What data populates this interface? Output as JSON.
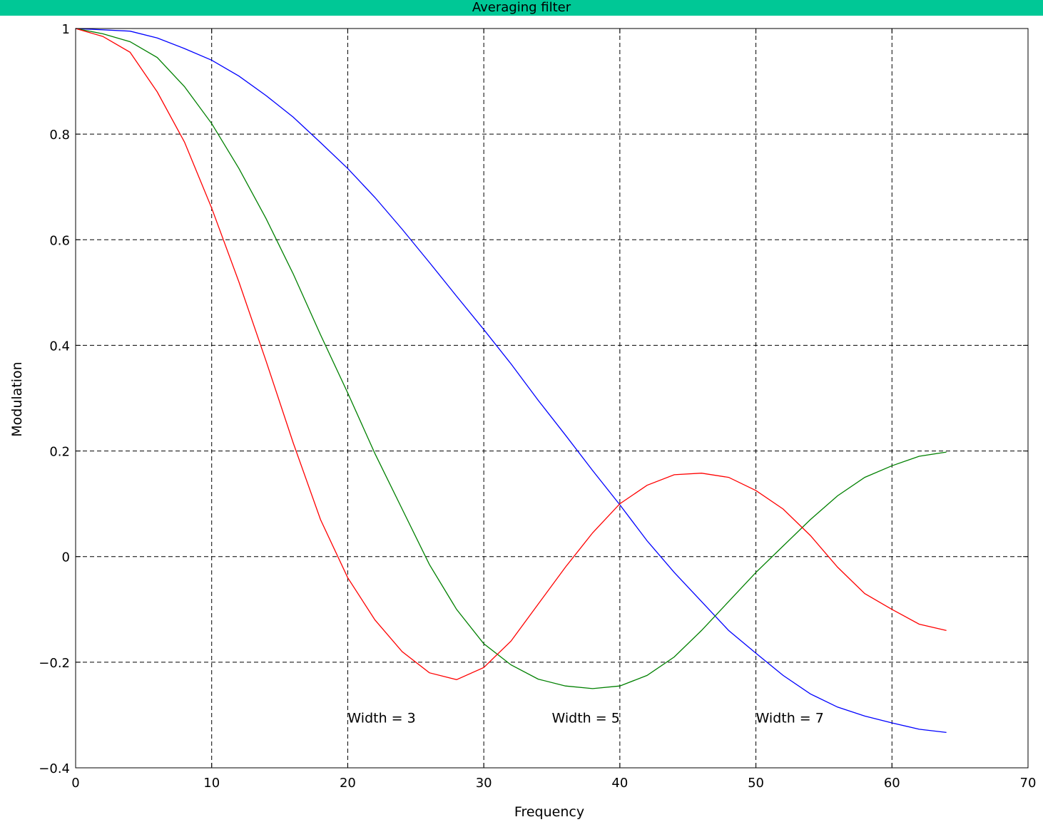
{
  "window": {
    "title": "Averaging filter"
  },
  "chart_data": {
    "type": "line",
    "title": "Averaging filter",
    "xlabel": "Frequency",
    "ylabel": "Modulation",
    "xlim": [
      0,
      70
    ],
    "ylim": [
      -0.4,
      1
    ],
    "x_ticks": [
      0,
      10,
      20,
      30,
      40,
      50,
      60,
      70
    ],
    "y_ticks": [
      -0.4,
      -0.2,
      0,
      0.2,
      0.4,
      0.6,
      0.8,
      1
    ],
    "y_tick_labels": [
      "−0.4",
      "−0.2",
      "0",
      "0.2",
      "0.4",
      "0.6",
      "0.8",
      "1"
    ],
    "grid": true,
    "series": [
      {
        "color": "#0000ff",
        "points": [
          [
            0,
            1
          ],
          [
            4,
            0.995
          ],
          [
            6,
            0.982
          ],
          [
            8,
            0.962
          ],
          [
            10,
            0.94
          ],
          [
            12,
            0.91
          ],
          [
            14,
            0.873
          ],
          [
            16,
            0.832
          ],
          [
            18,
            0.784
          ],
          [
            20,
            0.735
          ],
          [
            22,
            0.68
          ],
          [
            24,
            0.62
          ],
          [
            26,
            0.557
          ],
          [
            28,
            0.493
          ],
          [
            30,
            0.43
          ],
          [
            32,
            0.365
          ],
          [
            34,
            0.296
          ],
          [
            36,
            0.23
          ],
          [
            38,
            0.163
          ],
          [
            40,
            0.098
          ],
          [
            42,
            0.03
          ],
          [
            44,
            -0.03
          ],
          [
            46,
            -0.085
          ],
          [
            48,
            -0.14
          ],
          [
            50,
            -0.183
          ],
          [
            52,
            -0.225
          ],
          [
            54,
            -0.26
          ],
          [
            56,
            -0.285
          ],
          [
            58,
            -0.302
          ],
          [
            60,
            -0.315
          ],
          [
            62,
            -0.327
          ],
          [
            64,
            -0.333
          ]
        ]
      },
      {
        "color": "#008000",
        "points": [
          [
            0,
            1
          ],
          [
            2,
            0.99
          ],
          [
            4,
            0.975
          ],
          [
            6,
            0.945
          ],
          [
            8,
            0.89
          ],
          [
            10,
            0.82
          ],
          [
            12,
            0.735
          ],
          [
            14,
            0.64
          ],
          [
            16,
            0.535
          ],
          [
            18,
            0.42
          ],
          [
            20,
            0.31
          ],
          [
            22,
            0.195
          ],
          [
            24,
            0.09
          ],
          [
            26,
            -0.015
          ],
          [
            28,
            -0.1
          ],
          [
            30,
            -0.165
          ],
          [
            32,
            -0.205
          ],
          [
            34,
            -0.232
          ],
          [
            36,
            -0.245
          ],
          [
            38,
            -0.25
          ],
          [
            40,
            -0.245
          ],
          [
            42,
            -0.225
          ],
          [
            44,
            -0.19
          ],
          [
            46,
            -0.14
          ],
          [
            48,
            -0.085
          ],
          [
            50,
            -0.03
          ],
          [
            52,
            0.02
          ],
          [
            54,
            0.07
          ],
          [
            56,
            0.115
          ],
          [
            58,
            0.15
          ],
          [
            60,
            0.172
          ],
          [
            62,
            0.19
          ],
          [
            64,
            0.198
          ]
        ]
      },
      {
        "color": "#ff0000",
        "points": [
          [
            0,
            1
          ],
          [
            2,
            0.985
          ],
          [
            4,
            0.955
          ],
          [
            6,
            0.88
          ],
          [
            8,
            0.785
          ],
          [
            10,
            0.66
          ],
          [
            12,
            0.52
          ],
          [
            14,
            0.37
          ],
          [
            16,
            0.215
          ],
          [
            18,
            0.07
          ],
          [
            20,
            -0.04
          ],
          [
            22,
            -0.12
          ],
          [
            24,
            -0.18
          ],
          [
            26,
            -0.22
          ],
          [
            28,
            -0.233
          ],
          [
            30,
            -0.21
          ],
          [
            32,
            -0.16
          ],
          [
            34,
            -0.09
          ],
          [
            36,
            -0.02
          ],
          [
            38,
            0.045
          ],
          [
            40,
            0.1
          ],
          [
            42,
            0.135
          ],
          [
            44,
            0.155
          ],
          [
            46,
            0.158
          ],
          [
            48,
            0.15
          ],
          [
            50,
            0.125
          ],
          [
            52,
            0.09
          ],
          [
            54,
            0.04
          ],
          [
            56,
            -0.02
          ],
          [
            58,
            -0.07
          ],
          [
            60,
            -0.1
          ],
          [
            62,
            -0.128
          ],
          [
            64,
            -0.14
          ]
        ]
      }
    ],
    "annotations": [
      {
        "text": "Width = 3",
        "x": 20,
        "y": -0.305
      },
      {
        "text": "Width = 5",
        "x": 35,
        "y": -0.305
      },
      {
        "text": "Width = 7",
        "x": 50,
        "y": -0.305
      }
    ]
  }
}
